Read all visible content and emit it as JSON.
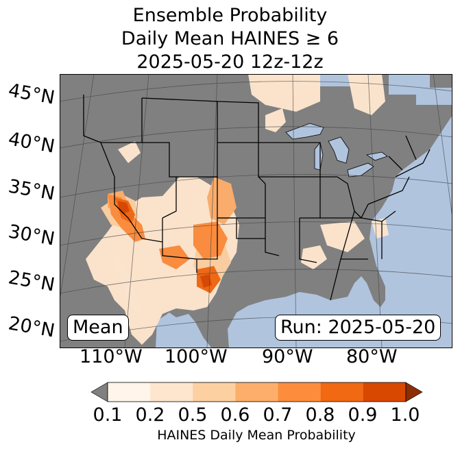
{
  "title": {
    "line1": "Ensemble Probability",
    "line2": "Daily Mean HAINES ≥ 6",
    "line3": "2025-05-20 12z-12z"
  },
  "axes": {
    "lat_labels": [
      "45°N",
      "40°N",
      "35°N",
      "30°N",
      "25°N",
      "20°N"
    ],
    "lon_labels": [
      "110°W",
      "100°W",
      "90°W",
      "80°W"
    ]
  },
  "annotations": {
    "left_box": "Mean",
    "right_box": "Run: 2025-05-20"
  },
  "colorbar": {
    "ticks": [
      "0.1",
      "0.2",
      "0.5",
      "0.6",
      "0.7",
      "0.8",
      "0.9",
      "1.0"
    ],
    "label": "HAINES Daily Mean Probability",
    "under_color": "#808080",
    "bin_colors": [
      "#fff5eb",
      "#fee6ce",
      "#fdd0a2",
      "#fdae6b",
      "#fd8d3c",
      "#f16913",
      "#d94801"
    ],
    "over_color": "#8c2d04"
  },
  "colors": {
    "ocean": "#b0c4de",
    "land_below_threshold": "#808080",
    "borders": "#000000"
  }
}
